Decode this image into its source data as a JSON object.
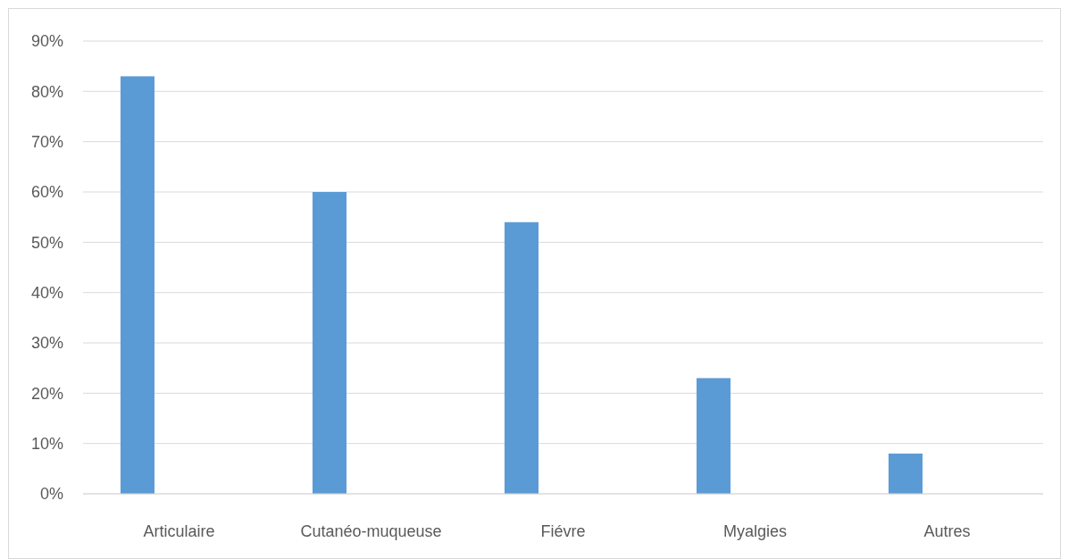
{
  "chart_data": {
    "type": "bar",
    "categories": [
      "Articulaire",
      "Cutanéo-muqueuse",
      "Fiévre",
      "Myalgies",
      "Autres"
    ],
    "values": [
      83,
      60,
      54,
      23,
      8
    ],
    "color": "#5b9bd5",
    "ylim": [
      0,
      90
    ],
    "yticks": [
      {
        "value": 0,
        "label": "0%"
      },
      {
        "value": 10,
        "label": "10%"
      },
      {
        "value": 20,
        "label": "20%"
      },
      {
        "value": 30,
        "label": "30%"
      },
      {
        "value": 40,
        "label": "40%"
      },
      {
        "value": 50,
        "label": "50%"
      },
      {
        "value": 60,
        "label": "60%"
      },
      {
        "value": 70,
        "label": "70%"
      },
      {
        "value": 80,
        "label": "80%"
      },
      {
        "value": 90,
        "label": "90%"
      }
    ],
    "grid": "y"
  }
}
